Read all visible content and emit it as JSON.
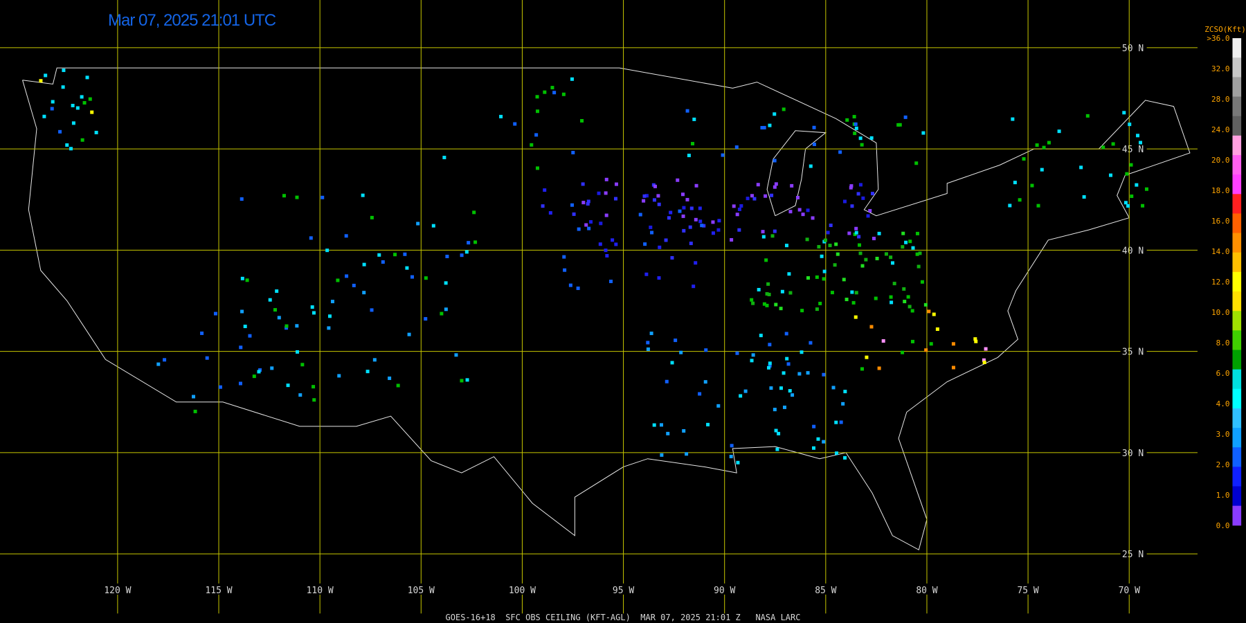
{
  "header": {
    "title": "Mar 07, 2025 21:01 UTC"
  },
  "map": {
    "lat_labels": [
      "50 N",
      "45 N",
      "40 N",
      "35 N",
      "30 N",
      "25 N"
    ],
    "lon_labels": [
      "120 W",
      "115 W",
      "110 W",
      "105 W",
      "100 W",
      "95 W",
      "90 W",
      "85 W",
      "80 W",
      "75 W",
      "70 W"
    ]
  },
  "legend": {
    "title": "ZCSO(Kft)",
    "labels": [
      ">36.0",
      "32.0",
      "28.0",
      "24.0",
      "20.0",
      "18.0",
      "16.0",
      "14.0",
      "12.0",
      "10.0",
      "8.0",
      "6.0",
      "4.0",
      "3.0",
      "2.0",
      "1.0",
      "0.0"
    ]
  },
  "footer": "GOES-16+18  SFC OBS CEILING (KFT-AGL)  MAR 07, 2025 21:01 Z   NASA LARC"
}
